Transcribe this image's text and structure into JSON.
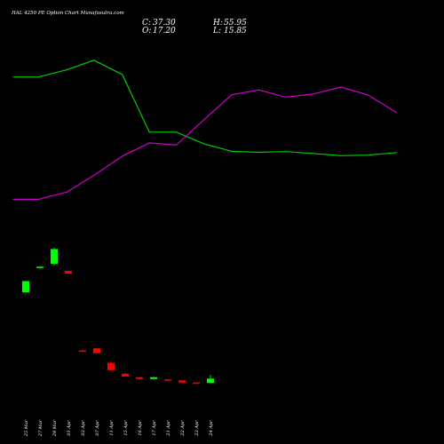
{
  "chart_data": {
    "type": "candlestick",
    "title": "HAL 4250 PE Option Chart Munafasutra.com",
    "ohlc_readout": {
      "open_label": "O:",
      "open_value": "17.20",
      "high_label": "H:",
      "high_value": "55.95",
      "low_label": "L:",
      "low_value": "15.85",
      "close_label": "C:",
      "close_value": "37.30"
    },
    "price_range": [
      0,
      58
    ],
    "categories": [
      "25 Mar",
      "27 Mar",
      "28 Mar",
      "01 Apr",
      "03 Apr",
      "07 Apr",
      "11 Apr",
      "15 Apr",
      "16 Apr",
      "17 Apr",
      "21 Apr",
      "22 Apr",
      "23 Apr",
      "24 Apr"
    ],
    "candles": [
      {
        "open": 35.5,
        "high": 38.7,
        "low": 35.5,
        "close": 38.7,
        "color": "#00ff00"
      },
      {
        "open": 42.5,
        "high": 42.8,
        "low": 42.2,
        "close": 42.8,
        "color": "#00ff00"
      },
      {
        "open": 43.6,
        "high": 48.3,
        "low": 43.2,
        "close": 47.8,
        "color": "#00ff00"
      },
      {
        "open": 41.6,
        "high": 41.6,
        "low": 40.8,
        "close": 40.8,
        "color": "#ff0000"
      },
      {
        "open": 19.0,
        "high": 19.4,
        "low": 18.6,
        "close": 18.8,
        "color": "#ff0000"
      },
      {
        "open": 19.6,
        "high": 19.8,
        "low": 18.0,
        "close": 18.2,
        "color": "#ff0000"
      },
      {
        "open": 15.5,
        "high": 15.9,
        "low": 13.3,
        "close": 13.4,
        "color": "#ff0000"
      },
      {
        "open": 12.4,
        "high": 12.7,
        "low": 11.5,
        "close": 11.6,
        "color": "#ff0000"
      },
      {
        "open": 11.4,
        "high": 11.5,
        "low": 10.8,
        "close": 10.9,
        "color": "#ff0000"
      },
      {
        "open": 10.9,
        "high": 11.5,
        "low": 10.8,
        "close": 11.4,
        "color": "#00ff00"
      },
      {
        "open": 10.8,
        "high": 10.8,
        "low": 10.5,
        "close": 10.5,
        "color": "#ff0000"
      },
      {
        "open": 10.5,
        "high": 10.5,
        "low": 9.8,
        "close": 9.9,
        "color": "#ff0000"
      },
      {
        "open": 9.9,
        "high": 9.9,
        "low": 9.6,
        "close": 9.7,
        "color": "#ff0000"
      },
      {
        "open": 9.8,
        "high": 12.1,
        "low": 9.8,
        "close": 11.0,
        "color": "#00ff00"
      }
    ],
    "lines": [
      {
        "color": "#00cc00",
        "x": [
          -0.9,
          0.9,
          2.9,
          4.8,
          6.8,
          8.7,
          10.6,
          12.6,
          14.5,
          16.4,
          18.3,
          20.2,
          22.2,
          24.1,
          26.1
        ],
        "y": [
          79,
          79,
          82,
          86,
          80,
          56,
          56,
          51,
          48,
          47.6,
          47.9,
          47.1,
          46.2,
          46.4,
          47.5
        ]
      },
      {
        "color": "#cc00cc",
        "x": [
          -0.9,
          0.9,
          2.9,
          4.8,
          6.8,
          8.7,
          10.6,
          12.6,
          14.5,
          16.4,
          18.3,
          20.2,
          22.2,
          24.1,
          26.1
        ],
        "y": [
          28,
          28,
          31,
          38,
          46,
          51.5,
          50.6,
          61.5,
          71.6,
          73.6,
          70.6,
          71.9,
          74.8,
          71.5,
          64.1
        ]
      }
    ],
    "line_range": [
      0,
      100
    ],
    "grid": false,
    "legend": "none"
  }
}
